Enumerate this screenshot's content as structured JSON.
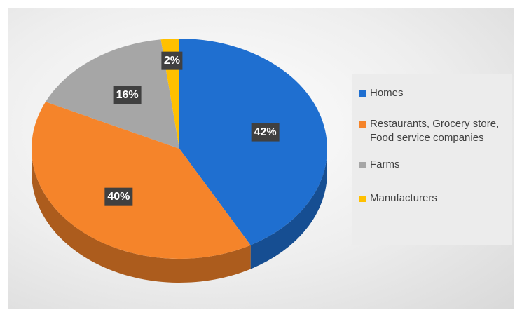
{
  "chart_data": {
    "type": "pie",
    "categories": [
      "Homes",
      "Restaurants, Grocery store, Food service companies",
      "Farms",
      "Manufacturers"
    ],
    "values": [
      42,
      40,
      16,
      2
    ],
    "value_labels": [
      "42%",
      "40%",
      "16%",
      "2%"
    ],
    "colors": [
      "#1f6fd0",
      "#f5842a",
      "#a6a6a6",
      "#ffc000"
    ],
    "legend": "right"
  }
}
